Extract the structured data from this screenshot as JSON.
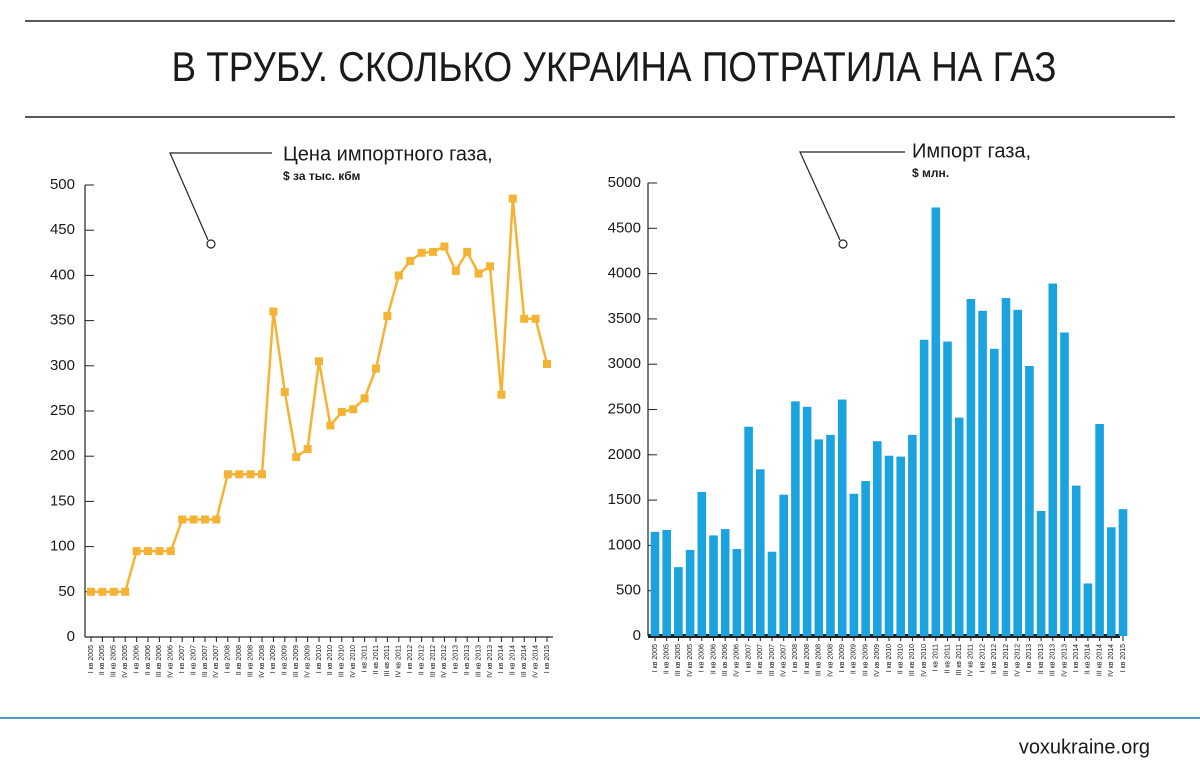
{
  "header": {
    "title": "В ТРУБУ. СКОЛЬКО УКРАИНА ПОТРАТИЛА НА ГАЗ"
  },
  "chart_data": [
    {
      "type": "line",
      "title": "Цена импортного газа,",
      "subtitle": "$ за тыс. кбм",
      "color": "#f5b335",
      "categories": [
        "I кв 2005",
        "II кв 2005",
        "III кв 2005",
        "IV кв 2005",
        "I кв 2006",
        "II кв 2006",
        "III кв 2006",
        "IV кв 2006",
        "I кв 2007",
        "II кв 2007",
        "III кв 2007",
        "IV кв 2007",
        "I кв 2008",
        "II кв 2008",
        "III кв 2008",
        "IV кв 2008",
        "I кв 2009",
        "II кв 2009",
        "III кв 2009",
        "IV кв 2009",
        "I кв 2010",
        "II кв 2010",
        "III кв 2010",
        "IV кв 2010",
        "I кв 2011",
        "II кв 2011",
        "III кв 2011",
        "IV кв 2011",
        "I кв 2012",
        "II кв 2012",
        "III кв 2012",
        "IV кв 2012",
        "I кв 2013",
        "II кв 2013",
        "III кв 2013",
        "IV кв 2013",
        "I кв 2014",
        "II кв 2014",
        "III кв 2014",
        "IV кв 2014",
        "I кв 2015"
      ],
      "values": [
        50,
        50,
        50,
        50,
        95,
        95,
        95,
        95,
        130,
        130,
        130,
        130,
        180,
        180,
        180,
        180,
        360,
        271,
        199,
        208,
        305,
        234,
        249,
        252,
        264,
        297,
        355,
        400,
        416,
        425,
        426,
        432,
        405,
        426,
        402,
        410,
        268,
        485,
        352,
        352,
        302
      ],
      "ylim": [
        0,
        500
      ],
      "yticks": [
        0,
        50,
        100,
        150,
        200,
        250,
        300,
        350,
        400,
        450,
        500
      ]
    },
    {
      "type": "bar",
      "title": "Импорт газа,",
      "subtitle": "$ млн.",
      "color": "#1aa3df",
      "categories": [
        "I кв 2005",
        "II кв 2005",
        "III кв 2005",
        "IV кв 2005",
        "I кв 2006",
        "II кв 2006",
        "III кв 2006",
        "IV кв 2006",
        "I кв 2007",
        "II кв 2007",
        "III кв 2007",
        "IV кв 2007",
        "I кв 2008",
        "II кв 2008",
        "III кв 2008",
        "IV кв 2008",
        "I кв 2009",
        "II кв 2009",
        "III кв 2009",
        "IV кв 2009",
        "I кв 2010",
        "II кв 2010",
        "III кв 2010",
        "IV кв 2010",
        "I кв 2011",
        "II кв 2011",
        "III кв 2011",
        "IV кв 2011",
        "I кв 2012",
        "II кв 2012",
        "III кв 2012",
        "IV кв 2012",
        "I кв 2013",
        "II кв 2013",
        "III кв 2013",
        "IV кв 2013",
        "I кв 2014",
        "II кв 2014",
        "III кв 2014",
        "IV кв 2014",
        "I кв 2015"
      ],
      "values": [
        1150,
        1170,
        760,
        950,
        1590,
        1110,
        1180,
        960,
        2310,
        1840,
        930,
        1560,
        2590,
        2530,
        2170,
        2220,
        2610,
        1570,
        1710,
        2150,
        1990,
        1980,
        2220,
        3270,
        4730,
        3250,
        2410,
        3720,
        3590,
        3170,
        3730,
        3600,
        2980,
        1380,
        3890,
        3350,
        1660,
        580,
        2340,
        1200,
        1400
      ],
      "ylim": [
        0,
        5000
      ],
      "yticks": [
        0,
        500,
        1000,
        1500,
        2000,
        2500,
        3000,
        3500,
        4000,
        4500,
        5000
      ]
    }
  ],
  "footer": {
    "source": "voxukraine.org"
  }
}
